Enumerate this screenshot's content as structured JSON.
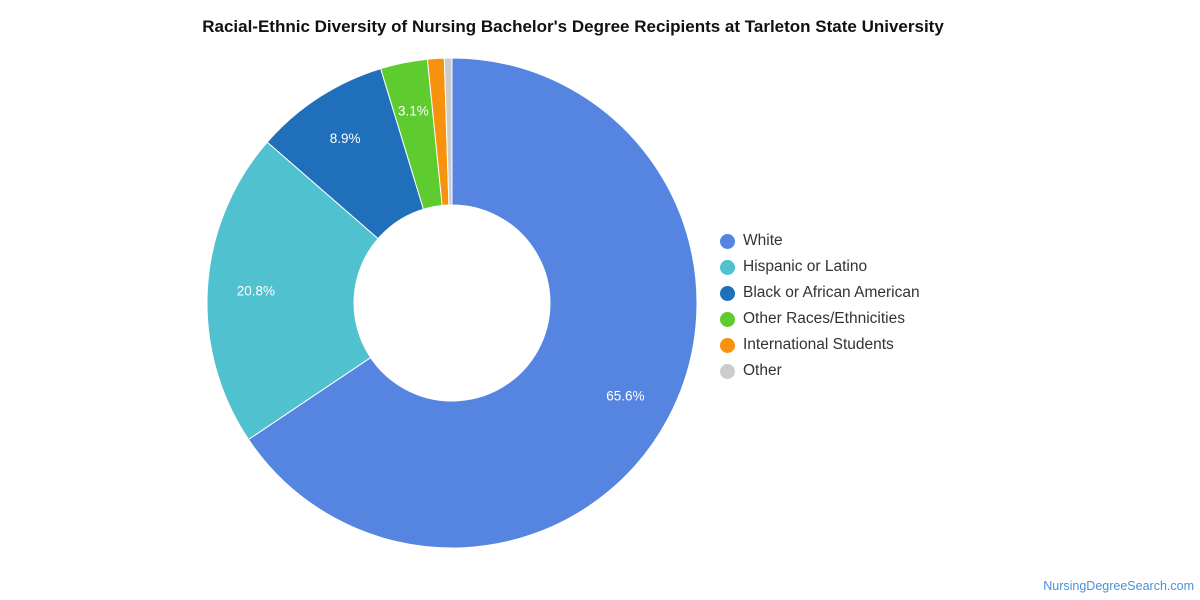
{
  "chart_data": {
    "type": "pie",
    "title": "Racial-Ethnic Diversity of Nursing Bachelor's Degree Recipients at Tarleton State University",
    "slices": [
      {
        "name": "White",
        "value": 65.6,
        "label": "65.6%",
        "color": "#5585e1"
      },
      {
        "name": "Hispanic or Latino",
        "value": 20.8,
        "label": "20.8%",
        "color": "#50c1cf"
      },
      {
        "name": "Black or African American",
        "value": 8.9,
        "label": "8.9%",
        "color": "#1f6fba"
      },
      {
        "name": "Other Races/Ethnicities",
        "value": 3.1,
        "label": "3.1%",
        "color": "#5ecb2f"
      },
      {
        "name": "International Students",
        "value": 1.1,
        "label": "",
        "color": "#f7920c"
      },
      {
        "name": "Other",
        "value": 0.5,
        "label": "",
        "color": "#cccccc"
      }
    ],
    "legend_position": "right"
  },
  "source": "NursingDegreeSearch.com"
}
